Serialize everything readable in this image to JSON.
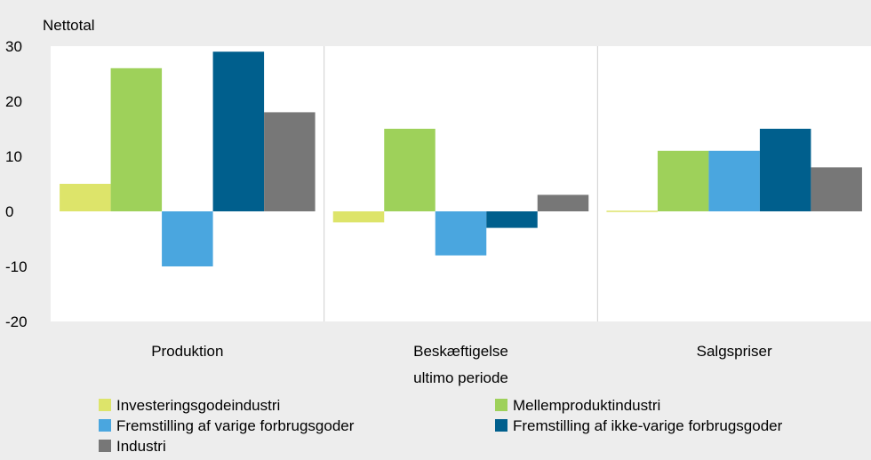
{
  "chart_data": {
    "type": "bar",
    "ylabel": "Nettotal",
    "ylim": [
      -20,
      30
    ],
    "yticks": [
      30,
      20,
      10,
      0,
      -10,
      -20
    ],
    "grid": false,
    "legend_position": "bottom",
    "categories": [
      [
        "Produktion"
      ],
      [
        "Beskæftigelse",
        "ultimo periode"
      ],
      [
        "Salgspriser"
      ]
    ],
    "series": [
      {
        "name": "Investeringsgodeindustri",
        "color": "#dde46a",
        "values": [
          5,
          -2,
          0
        ]
      },
      {
        "name": "Mellemproduktindustri",
        "color": "#9ed15a",
        "values": [
          26,
          15,
          11
        ]
      },
      {
        "name": "Fremstilling af varige forbrugsgoder",
        "color": "#4aa6df",
        "values": [
          -10,
          -8,
          11
        ]
      },
      {
        "name": "Fremstilling af ikke-varige forbrugsgoder",
        "color": "#005f8d",
        "values": [
          29,
          -3,
          15
        ]
      },
      {
        "name": "Industri",
        "color": "#777777",
        "values": [
          18,
          3,
          8
        ]
      }
    ]
  }
}
